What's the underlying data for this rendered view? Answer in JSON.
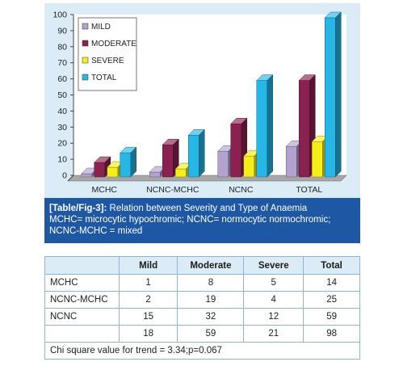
{
  "chart_data": {
    "type": "bar",
    "categories": [
      "MCHC",
      "NCNC-MCHC",
      "NCNC",
      "TOTAL"
    ],
    "series": [
      {
        "name": "MILD",
        "values": [
          1,
          2,
          15,
          18
        ],
        "color": "#b3a2cf"
      },
      {
        "name": "MODERATE",
        "values": [
          8,
          19,
          32,
          59
        ],
        "color": "#8b2150"
      },
      {
        "name": "SEVERE",
        "values": [
          5,
          4,
          12,
          21
        ],
        "color": "#f6ee18"
      },
      {
        "name": "TOTAL",
        "values": [
          14,
          25,
          59,
          98
        ],
        "color": "#27b7e6"
      }
    ],
    "ylim": [
      0,
      100
    ],
    "yticks": [
      "0",
      "10",
      "20",
      "30",
      "40",
      "50",
      "60",
      "70",
      "80",
      "90",
      "100"
    ],
    "grid": false,
    "legend": "top-left",
    "three_d": true
  },
  "caption": {
    "label": "[Table/Fig-3]:",
    "line1": " Relation between Severity and Type of Anaemia",
    "line2": "MCHC= microcytic hypochromic; NCNC= normocytic normochromic;",
    "line3": "NCNC-MCHC = mixed"
  },
  "table": {
    "headers": [
      "",
      "Mild",
      "Moderate",
      "Severe",
      "Total"
    ],
    "rows": [
      {
        "label": "MCHC",
        "values": [
          "1",
          "8",
          "5",
          "14"
        ]
      },
      {
        "label": "NCNC-MCHC",
        "values": [
          "2",
          "19",
          "4",
          "25"
        ]
      },
      {
        "label": "NCNC",
        "values": [
          "15",
          "32",
          "12",
          "59"
        ]
      },
      {
        "label": "",
        "values": [
          "18",
          "59",
          "21",
          "98"
        ]
      }
    ],
    "footnote": "Chi square value for trend = 3.34;p=0.067"
  }
}
